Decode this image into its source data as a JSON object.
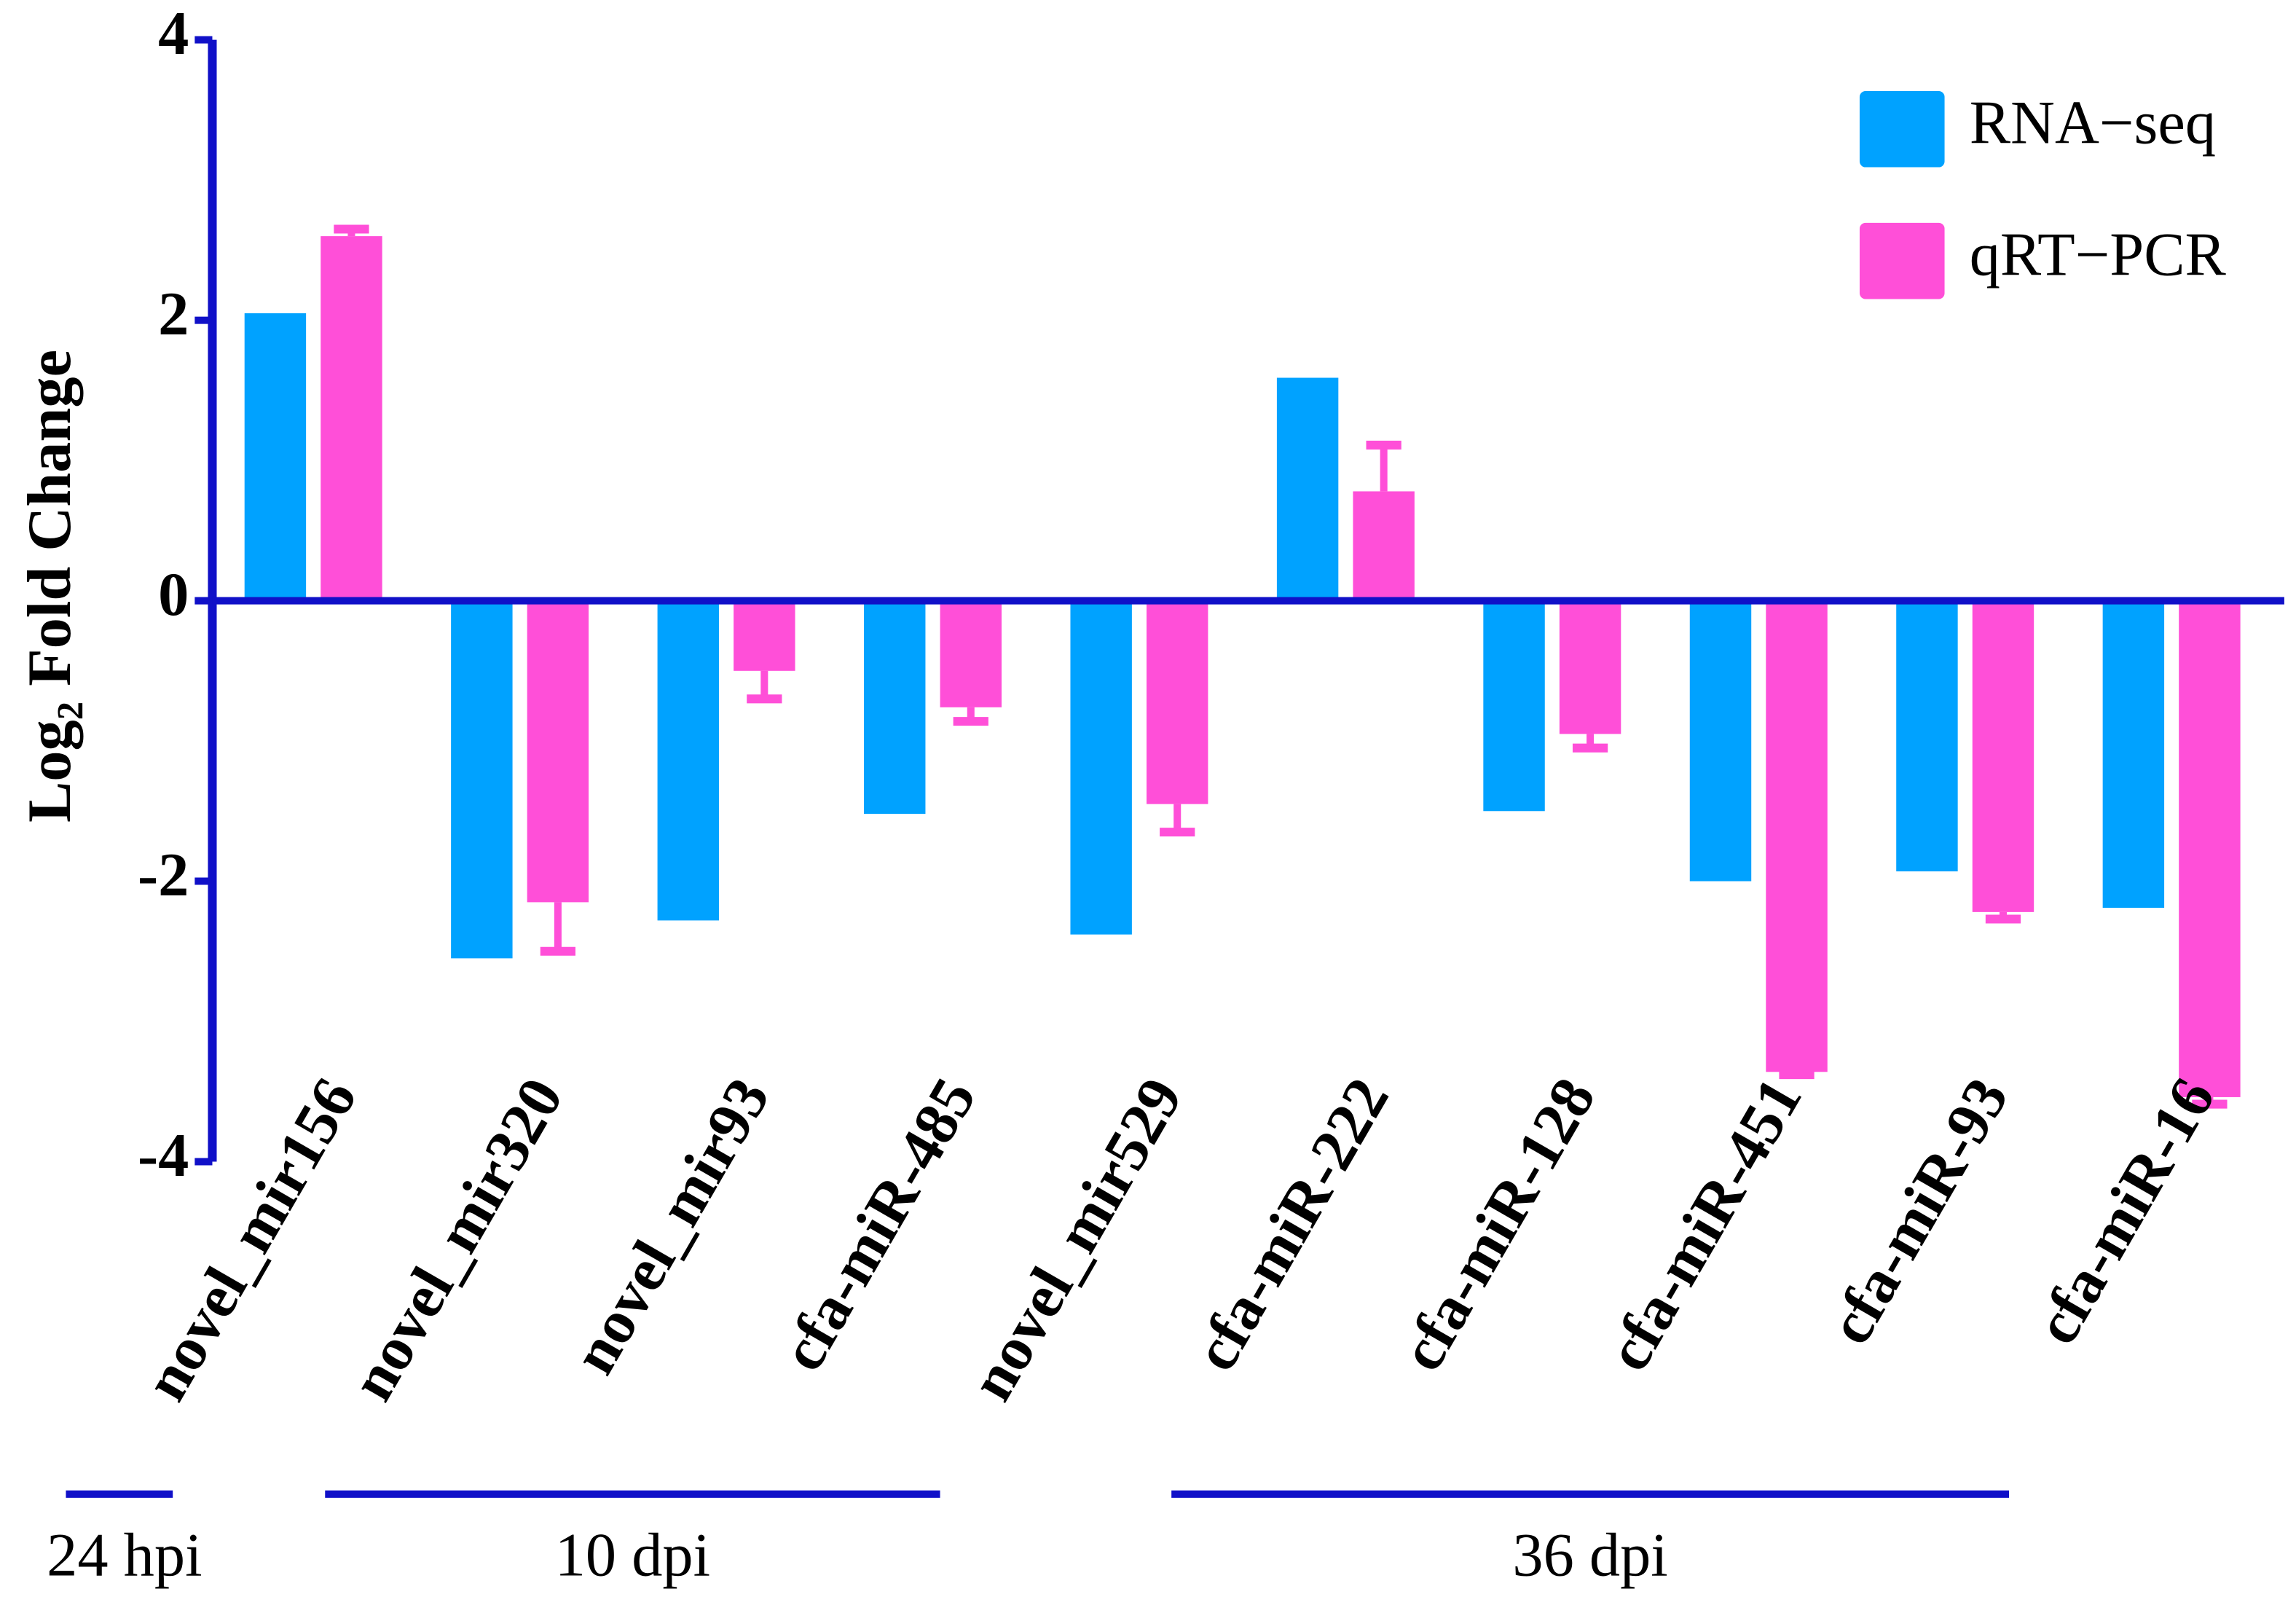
{
  "chart_data": {
    "type": "bar",
    "y_label": "Log₂ Fold Change",
    "categories": [
      "novel_mir156",
      "novel_mir320",
      "novel_mir93",
      "cfa-miR-485",
      "novel_mir529",
      "cfa-miR-222",
      "cfa-miR-128",
      "cfa-miR-451",
      "cfa-miR-93",
      "cfa-miR-16"
    ],
    "series": [
      {
        "name": "RNA−seq",
        "color": "#00a2ff",
        "values": [
          2.05,
          -2.55,
          -2.28,
          -1.52,
          -2.38,
          1.59,
          -1.5,
          -2.0,
          -1.93,
          -2.19
        ]
      },
      {
        "name": "qRT−PCR",
        "color": "#ff4fd8",
        "values": [
          2.6,
          -2.15,
          -0.5,
          -0.76,
          -1.45,
          0.78,
          -0.95,
          -3.36,
          -2.22,
          -3.54
        ],
        "errors": [
          0.05,
          0.35,
          0.2,
          0.1,
          0.2,
          0.33,
          0.1,
          0.02,
          0.05,
          0.05
        ]
      }
    ],
    "groups": [
      "24 hpi",
      "10 dpi",
      "36 dpi"
    ],
    "ylim": [
      -4,
      4
    ],
    "yticks": [
      -4,
      -2,
      0,
      2,
      4
    ],
    "axis_color": "#1010c8",
    "legend": "upper right"
  }
}
